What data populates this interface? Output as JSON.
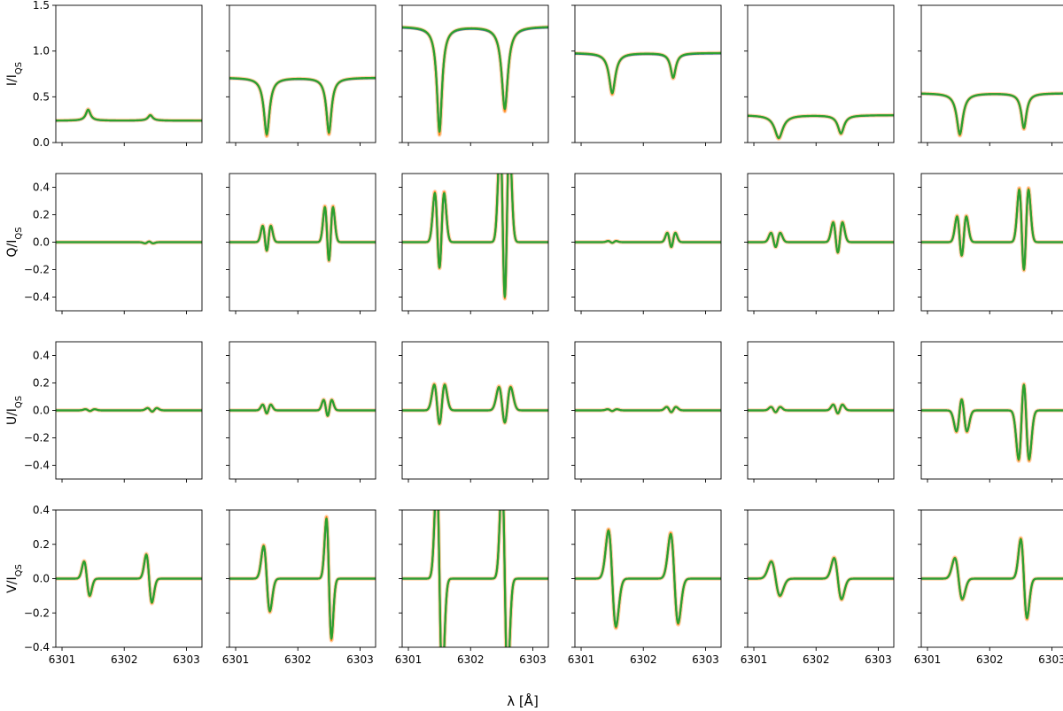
{
  "figure": {
    "xlabel": "λ [Å]",
    "row_labels": [
      "I/I",
      "Q/I",
      "U/I",
      "V/I"
    ],
    "row_label_subscript": "QS",
    "series_colors": {
      "blue": "#1f77b4",
      "orange": "#ff7f0e",
      "green": "#2ca02c"
    }
  },
  "chart_data": {
    "type": "line",
    "layout": "grid 4 rows x 6 columns, shared x axis per column, shared y axis per row",
    "xlim": [
      6300.9,
      6303.25
    ],
    "x_ticks": [
      6301,
      6302,
      6303
    ],
    "rows": [
      {
        "name": "I/I_QS",
        "ylim": [
          0.0,
          1.5
        ],
        "y_ticks": [
          0.0,
          0.5,
          1.0,
          1.5
        ],
        "y_tick_labels": [
          "0.0",
          "0.5",
          "1.0",
          "1.5"
        ]
      },
      {
        "name": "Q/I_QS",
        "ylim": [
          -0.5,
          0.5
        ],
        "y_ticks": [
          -0.4,
          -0.2,
          0.0,
          0.2,
          0.4
        ],
        "y_tick_labels": [
          "−0.4",
          "−0.2",
          "0.0",
          "0.2",
          "0.4"
        ]
      },
      {
        "name": "U/I_QS",
        "ylim": [
          -0.5,
          0.5
        ],
        "y_ticks": [
          -0.4,
          -0.2,
          0.0,
          0.2,
          0.4
        ],
        "y_tick_labels": [
          "−0.4",
          "−0.2",
          "0.0",
          "0.2",
          "0.4"
        ]
      },
      {
        "name": "V/I_QS",
        "ylim": [
          -0.4,
          0.4
        ],
        "y_ticks": [
          -0.4,
          -0.2,
          0.0,
          0.2,
          0.4
        ],
        "y_tick_labels": [
          "−0.4",
          "−0.2",
          "0.0",
          "0.2",
          "0.4"
        ]
      }
    ],
    "x_tick_labels": [
      "6301",
      "6302",
      "6303"
    ],
    "panels": [
      [
        {
          "cont": 0.24,
          "c1": 6301.42,
          "d1": -0.12,
          "w1": 0.045,
          "c2": 6302.42,
          "d2": -0.06,
          "w2": 0.045
        },
        {
          "cont": 0.71,
          "c1": 6301.5,
          "d1": 0.62,
          "w1": 0.055,
          "c2": 6302.5,
          "d2": 0.6,
          "w2": 0.05
        },
        {
          "cont": 1.27,
          "c1": 6301.5,
          "d1": 1.15,
          "w1": 0.05,
          "c2": 6302.55,
          "d2": 0.9,
          "w2": 0.06
        },
        {
          "cont": 0.98,
          "c1": 6301.5,
          "d1": 0.44,
          "w1": 0.06,
          "c2": 6302.48,
          "d2": 0.27,
          "w2": 0.05
        },
        {
          "cont": 0.3,
          "c1": 6301.4,
          "d1": 0.25,
          "w1": 0.08,
          "c2": 6302.4,
          "d2": 0.2,
          "w2": 0.06
        },
        {
          "cont": 0.54,
          "c1": 6301.52,
          "d1": 0.45,
          "w1": 0.06,
          "c2": 6302.55,
          "d2": 0.38,
          "w2": 0.05
        }
      ],
      [
        {
          "c1": 6301.45,
          "a1": 0.0,
          "c2": 6302.4,
          "a2": -0.01,
          "s1": 0.035,
          "s2": 0.035
        },
        {
          "c1": 6301.5,
          "a1": 0.14,
          "c2": 6302.5,
          "a2": 0.3,
          "s1": 0.035,
          "s2": 0.035
        },
        {
          "c1": 6301.5,
          "a1": 0.42,
          "c2": 6302.55,
          "a2": 0.9,
          "s1": 0.04,
          "s2": 0.04
        },
        {
          "c1": 6301.5,
          "a1": 0.01,
          "c2": 6302.45,
          "a2": 0.08,
          "s1": 0.035,
          "s2": 0.035
        },
        {
          "c1": 6301.35,
          "a1": 0.08,
          "c2": 6302.35,
          "a2": 0.17,
          "s1": 0.04,
          "s2": 0.04
        },
        {
          "c1": 6301.55,
          "a1": 0.22,
          "c2": 6302.55,
          "a2": 0.45,
          "s1": 0.04,
          "s2": 0.04
        }
      ],
      [
        {
          "c1": 6301.45,
          "a1": 0.01,
          "c2": 6302.45,
          "a2": 0.02,
          "s1": 0.04,
          "s2": 0.04
        },
        {
          "c1": 6301.5,
          "a1": 0.05,
          "c2": 6302.48,
          "a2": 0.09,
          "s1": 0.035,
          "s2": 0.035
        },
        {
          "c1": 6301.5,
          "a1": 0.22,
          "c2": 6302.55,
          "a2": 0.2,
          "s1": 0.045,
          "s2": 0.05
        },
        {
          "c1": 6301.5,
          "a1": 0.01,
          "c2": 6302.45,
          "a2": 0.03,
          "s1": 0.04,
          "s2": 0.04
        },
        {
          "c1": 6301.35,
          "a1": 0.03,
          "c2": 6302.35,
          "a2": 0.05,
          "s1": 0.04,
          "s2": 0.04
        },
        {
          "c1": 6301.55,
          "a1": -0.18,
          "c2": 6302.55,
          "a2": -0.42,
          "s1": 0.045,
          "s2": 0.045
        }
      ],
      [
        {
          "c1": 6301.4,
          "a1": 0.1,
          "c2": 6302.4,
          "a2": 0.14,
          "s1": 0.045,
          "s2": 0.045
        },
        {
          "c1": 6301.5,
          "a1": 0.19,
          "c2": 6302.5,
          "a2": 0.35,
          "s1": 0.05,
          "s2": 0.04
        },
        {
          "c1": 6301.5,
          "a1": 0.6,
          "c2": 6302.55,
          "a2": 0.6,
          "s1": 0.045,
          "s2": 0.045
        },
        {
          "c1": 6301.5,
          "a1": 0.28,
          "c2": 6302.5,
          "a2": 0.26,
          "s1": 0.06,
          "s2": 0.06
        },
        {
          "c1": 6301.35,
          "a1": 0.1,
          "c2": 6302.35,
          "a2": 0.12,
          "s1": 0.07,
          "s2": 0.06
        },
        {
          "c1": 6301.5,
          "a1": 0.12,
          "c2": 6302.55,
          "a2": 0.23,
          "s1": 0.06,
          "s2": 0.05
        }
      ]
    ],
    "series": [
      {
        "name": "",
        "color": "#1f77b4"
      },
      {
        "name": "",
        "color": "#ff7f0e"
      },
      {
        "name": "",
        "color": "#2ca02c"
      }
    ]
  }
}
